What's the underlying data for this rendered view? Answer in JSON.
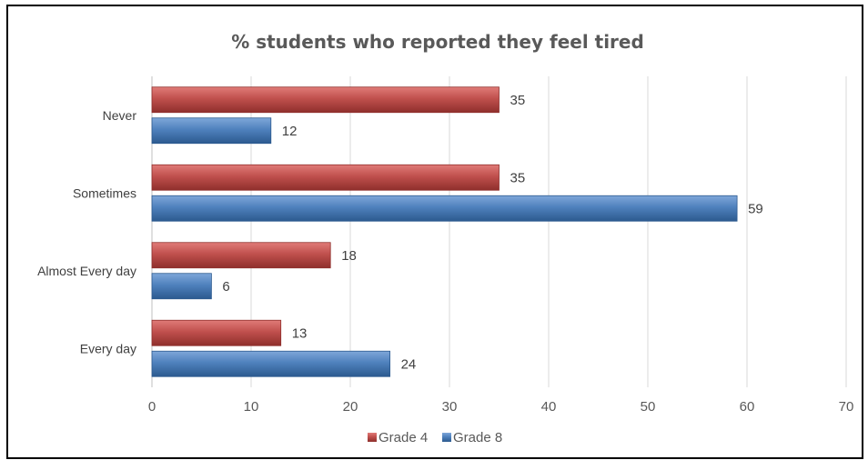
{
  "chart_data": {
    "type": "bar",
    "orientation": "horizontal",
    "title": "% students who reported they feel tired",
    "categories": [
      "Never",
      "Sometimes",
      "Almost Every day",
      "Every day"
    ],
    "series": [
      {
        "name": "Grade 4",
        "values": [
          35,
          35,
          18,
          13
        ],
        "color": "#c0504d"
      },
      {
        "name": "Grade 8",
        "values": [
          12,
          59,
          6,
          24
        ],
        "color": "#4f81bd"
      }
    ],
    "data_labels": {
      "Grade 4": [
        "35",
        "35",
        "18",
        "13"
      ],
      "Grade 8": [
        "12",
        "59",
        "6",
        "24"
      ]
    },
    "x_ticks": [
      "0",
      "10",
      "20",
      "30",
      "40",
      "50",
      "60",
      "70"
    ],
    "xlim": [
      0,
      70
    ],
    "grid": true,
    "legend_position": "bottom",
    "xlabel": "",
    "ylabel": ""
  }
}
